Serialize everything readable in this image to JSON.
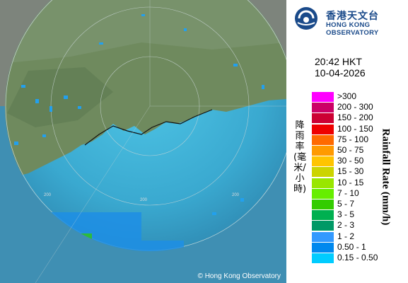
{
  "header": {
    "org_zh": "香港天文台",
    "org_en": "HONG KONG OBSERVATORY"
  },
  "timestamp": {
    "time": "20:42 HKT",
    "date": "10-04-2026"
  },
  "legend": {
    "title_zh": "降雨率(毫米/小時)",
    "title_en": "Rainfall Rate (mm/h)",
    "items": [
      {
        "label": ">300",
        "color": "#ff00ff"
      },
      {
        "label": "200 - 300",
        "color": "#cc0066"
      },
      {
        "label": "150 - 200",
        "color": "#cc0033"
      },
      {
        "label": "100 - 150",
        "color": "#ee0000"
      },
      {
        "label": "75 - 100",
        "color": "#ff6a00"
      },
      {
        "label": "50 - 75",
        "color": "#ff9a00"
      },
      {
        "label": "30 - 50",
        "color": "#ffc400"
      },
      {
        "label": "15 - 30",
        "color": "#ccd400"
      },
      {
        "label": "10 - 15",
        "color": "#99e600"
      },
      {
        "label": "7 - 10",
        "color": "#66ee00"
      },
      {
        "label": "5 - 7",
        "color": "#33cc00"
      },
      {
        "label": "3 - 5",
        "color": "#00b050"
      },
      {
        "label": "2 - 3",
        "color": "#009966"
      },
      {
        "label": "1 - 2",
        "color": "#3399ff"
      },
      {
        "label": "0.50 - 1",
        "color": "#0088ee"
      },
      {
        "label": "0.15 - 0.50",
        "color": "#00ccff"
      }
    ]
  },
  "map": {
    "range_labels": [
      "200",
      "200",
      "200"
    ],
    "copyright": "© Hong Kong Observatory"
  }
}
